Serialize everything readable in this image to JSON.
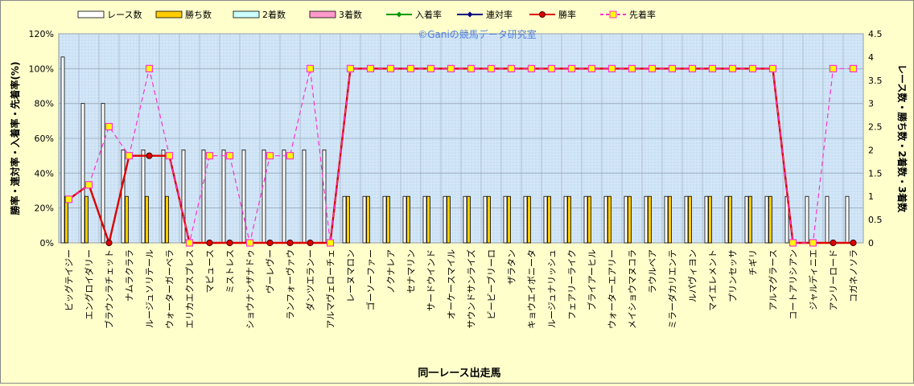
{
  "colors": {
    "page_bg": "#ffffcc",
    "plot_bg": "#cfe4f6",
    "grid": "#9aa9b8",
    "race_fill": "#ffffff",
    "win_fill": "#ffcc00",
    "second_fill": "#ccffff",
    "third_fill": "#ff99cc",
    "place_rate": "#009900",
    "quinella_rate": "#000080",
    "win_rate": "#dd0000",
    "first_place_rate": "#ff33cc",
    "first_place_marker": "#ffff00"
  },
  "chart_data": {
    "type": "bar+line",
    "watermark": "©Ganiの競馬データ研究室",
    "xlabel": "同一レース出走馬",
    "ylabel_left": "勝率・連対率・入着率・先着率(%)",
    "ylabel_right": "レース数・勝ち数・2着数・3着数",
    "ylim_left": [
      0,
      120
    ],
    "yticks_left": [
      "0%",
      "20%",
      "40%",
      "60%",
      "80%",
      "100%",
      "120%"
    ],
    "ylim_right": [
      0,
      4.5
    ],
    "yticks_right": [
      "0",
      "0.5",
      "1",
      "1.5",
      "2",
      "2.5",
      "3",
      "3.5",
      "4",
      "4.5"
    ],
    "grid": true,
    "legend_position": "top",
    "legend": [
      "レース数",
      "勝ち数",
      "2着数",
      "3着数",
      "入着率",
      "連対率",
      "勝率",
      "先着率"
    ],
    "categories": [
      "ビッグテイジー",
      "エングロイダリー",
      "ブラウンラチェット",
      "ナムラクララ",
      "ルージュソリテール",
      "ウォーターガーベラ",
      "エリカエクスプレス",
      "マピュース",
      "ミストレス",
      "ショウナンザナドゥ",
      "ヴーレヴー",
      "ランフォーヴァウ",
      "ダンツエランー",
      "アルマヴェローチェ",
      "レーヌマロン",
      "ゴーソーファー",
      "ノクナレア",
      "セナマリン",
      "サードウインド",
      "オーケースマイル",
      "サウンドサンライズ",
      "ビービーブリーロ",
      "ザラタン",
      "キョウエイボニータ",
      "ルージュナリッシュ",
      "フェアリーライク",
      "ブライアーヒル",
      "ウォーターエアリー",
      "メイショウマヌコラ",
      "ラウルベア",
      "ミラーダカリエンテ",
      "ルパヴィヨン",
      "マイエレメント",
      "プリンセッサ",
      "チギリ",
      "アルマグラース",
      "コートアリシアン",
      "ジャルディニエ",
      "アンリーロード",
      "コガネノソラ"
    ],
    "series": [
      {
        "name": "レース数",
        "kind": "bar",
        "axis": "right",
        "values": [
          4,
          3,
          3,
          2,
          2,
          2,
          2,
          2,
          2,
          2,
          2,
          2,
          2,
          2,
          1,
          1,
          1,
          1,
          1,
          1,
          1,
          1,
          1,
          1,
          1,
          1,
          1,
          1,
          1,
          1,
          1,
          1,
          1,
          1,
          1,
          1,
          1,
          1,
          1,
          1
        ]
      },
      {
        "name": "勝ち数",
        "kind": "bar",
        "axis": "right",
        "values": [
          1,
          1,
          0,
          1,
          1,
          1,
          0,
          0,
          0,
          0,
          0,
          0,
          0,
          0,
          1,
          1,
          1,
          1,
          1,
          1,
          1,
          1,
          1,
          1,
          1,
          1,
          1,
          1,
          1,
          1,
          1,
          1,
          1,
          1,
          1,
          1,
          0,
          0,
          0,
          0
        ]
      },
      {
        "name": "2着数",
        "kind": "bar",
        "axis": "right",
        "values": [
          0,
          0,
          0,
          0,
          0,
          0,
          0,
          0,
          0,
          0,
          0,
          0,
          0,
          0,
          0,
          0,
          0,
          0,
          0,
          0,
          0,
          0,
          0,
          0,
          0,
          0,
          0,
          0,
          0,
          0,
          0,
          0,
          0,
          0,
          0,
          0,
          0,
          0,
          0,
          0
        ]
      },
      {
        "name": "3着数",
        "kind": "bar",
        "axis": "right",
        "values": [
          0,
          0,
          0,
          0,
          0,
          0,
          0,
          0,
          0,
          0,
          0,
          0,
          0,
          0,
          0,
          0,
          0,
          0,
          0,
          0,
          0,
          0,
          0,
          0,
          0,
          0,
          0,
          0,
          0,
          0,
          0,
          0,
          0,
          0,
          0,
          0,
          0,
          0,
          0,
          0
        ]
      },
      {
        "name": "入着率",
        "kind": "line",
        "axis": "left",
        "values": [
          25,
          33.3,
          0,
          50,
          50,
          50,
          0,
          0,
          0,
          0,
          0,
          0,
          0,
          0,
          100,
          100,
          100,
          100,
          100,
          100,
          100,
          100,
          100,
          100,
          100,
          100,
          100,
          100,
          100,
          100,
          100,
          100,
          100,
          100,
          100,
          100,
          0,
          0,
          0,
          0
        ]
      },
      {
        "name": "連対率",
        "kind": "line",
        "axis": "left",
        "values": [
          25,
          33.3,
          0,
          50,
          50,
          50,
          0,
          0,
          0,
          0,
          0,
          0,
          0,
          0,
          100,
          100,
          100,
          100,
          100,
          100,
          100,
          100,
          100,
          100,
          100,
          100,
          100,
          100,
          100,
          100,
          100,
          100,
          100,
          100,
          100,
          100,
          0,
          0,
          0,
          0
        ]
      },
      {
        "name": "勝率",
        "kind": "line",
        "axis": "left",
        "values": [
          25,
          33.3,
          0,
          50,
          50,
          50,
          0,
          0,
          0,
          0,
          0,
          0,
          0,
          0,
          100,
          100,
          100,
          100,
          100,
          100,
          100,
          100,
          100,
          100,
          100,
          100,
          100,
          100,
          100,
          100,
          100,
          100,
          100,
          100,
          100,
          100,
          0,
          0,
          0,
          0
        ]
      },
      {
        "name": "先着率",
        "kind": "line",
        "axis": "left",
        "values": [
          25,
          33.3,
          66.7,
          50,
          100,
          50,
          0,
          50,
          50,
          0,
          50,
          50,
          100,
          0,
          100,
          100,
          100,
          100,
          100,
          100,
          100,
          100,
          100,
          100,
          100,
          100,
          100,
          100,
          100,
          100,
          100,
          100,
          100,
          100,
          100,
          100,
          0,
          0,
          100,
          100
        ]
      }
    ]
  }
}
